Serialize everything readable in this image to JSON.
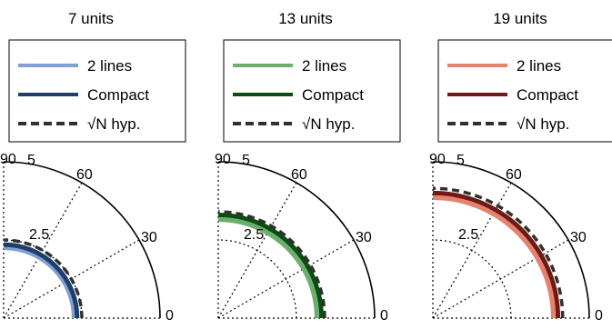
{
  "chart_data": [
    {
      "type": "line",
      "coordinate_system": "polar",
      "title": "7 units",
      "theta_ticks": [
        "0",
        "30",
        "60",
        "90"
      ],
      "r_ticks": [
        "2.5",
        "5"
      ],
      "rlim": [
        0,
        5
      ],
      "theta_range_deg": [
        0,
        90
      ],
      "grid": true,
      "legend_position": "top",
      "series": [
        {
          "name": "2 lines",
          "color": "#7fa0d0",
          "style": "solid",
          "r": 2.25
        },
        {
          "name": "Compact",
          "color": "#1f3f6b",
          "style": "solid",
          "r": 2.35
        },
        {
          "name": "√N hyp.",
          "color": "#303030",
          "style": "dashed",
          "r": 2.5
        }
      ]
    },
    {
      "type": "line",
      "coordinate_system": "polar",
      "title": "13 units",
      "theta_ticks": [
        "0",
        "30",
        "60",
        "90"
      ],
      "r_ticks": [
        "2.5",
        "5"
      ],
      "rlim": [
        0,
        5
      ],
      "theta_range_deg": [
        0,
        90
      ],
      "grid": true,
      "legend_position": "top",
      "series": [
        {
          "name": "2 lines",
          "color": "#6ab06a",
          "style": "solid",
          "r": 3.15
        },
        {
          "name": "Compact",
          "color": "#0b4d12",
          "style": "solid",
          "r": 3.3
        },
        {
          "name": "√N hyp.",
          "color": "#303030",
          "style": "dashed",
          "r": 3.4
        }
      ]
    },
    {
      "type": "line",
      "coordinate_system": "polar",
      "title": "19 units",
      "theta_ticks": [
        "0",
        "30",
        "60",
        "90"
      ],
      "r_ticks": [
        "2.5",
        "5"
      ],
      "rlim": [
        0,
        5
      ],
      "theta_range_deg": [
        0,
        90
      ],
      "grid": true,
      "legend_position": "top",
      "series": [
        {
          "name": "2 lines",
          "color": "#e8806a",
          "style": "solid",
          "r": 3.85
        },
        {
          "name": "Compact",
          "color": "#6e1a16",
          "style": "solid",
          "r": 4.0
        },
        {
          "name": "√N hyp.",
          "color": "#303030",
          "style": "dashed",
          "r": 4.15
        }
      ]
    }
  ]
}
